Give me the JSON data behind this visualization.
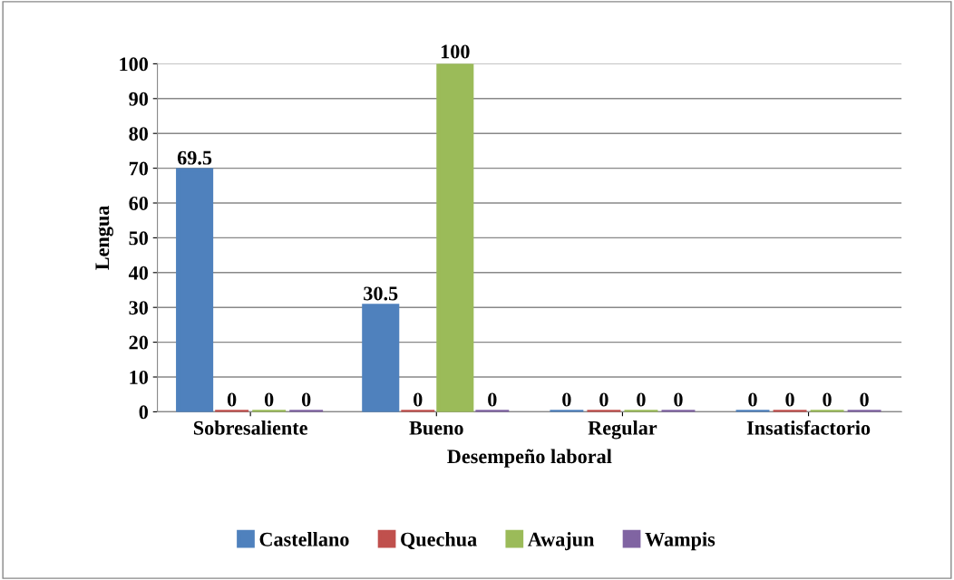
{
  "chart_data": {
    "type": "bar",
    "xlabel": "Desempeño laboral",
    "ylabel": "Lengua",
    "categories": [
      "Sobresaliente",
      "Bueno",
      "Regular",
      "Insatisfactorio"
    ],
    "series": [
      {
        "name": "Castellano",
        "color": "#4f81bd",
        "values": [
          69.5,
          30.5,
          0,
          0
        ]
      },
      {
        "name": "Quechua",
        "color": "#c0504d",
        "values": [
          0,
          0,
          0,
          0
        ]
      },
      {
        "name": "Awajun",
        "color": "#9bbb59",
        "values": [
          0,
          100,
          0,
          0
        ]
      },
      {
        "name": "Wampis",
        "color": "#8064a2",
        "values": [
          0,
          0,
          0,
          0
        ]
      }
    ],
    "ylim": [
      0,
      100
    ],
    "yticks": [
      0,
      10,
      20,
      30,
      40,
      50,
      60,
      70,
      80,
      90,
      100
    ],
    "grid": "y",
    "legend": "bottom",
    "data_labels": true
  }
}
